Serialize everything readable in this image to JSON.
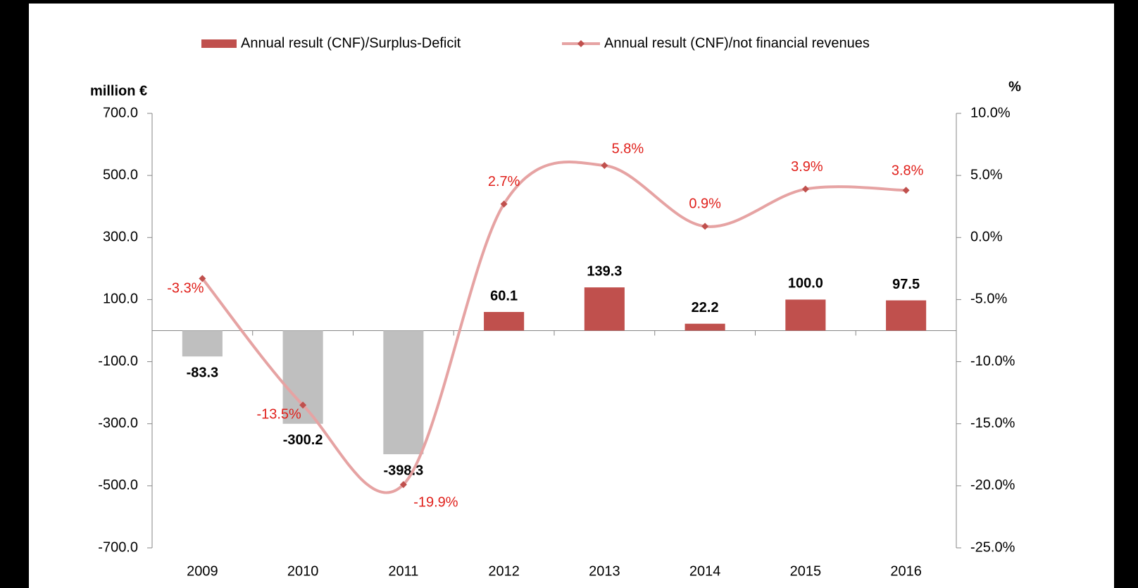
{
  "chart_data": {
    "type": "bar_line",
    "categories": [
      "2009",
      "2010",
      "2011",
      "2012",
      "2013",
      "2014",
      "2015",
      "2016"
    ],
    "series": [
      {
        "name": "Annual result (CNF)/Surplus-Deficit",
        "type": "bar",
        "color": "#c0504d",
        "negative_color": "#bfbfbf",
        "values": [
          -83.3,
          -300.2,
          -398.3,
          60.1,
          139.3,
          22.2,
          100.0,
          97.5
        ],
        "value_labels": [
          "-83.3",
          "-300.2",
          "-398.3",
          "60.1",
          "139.3",
          "22.2",
          "100.0",
          "97.5"
        ]
      },
      {
        "name": "Annual result (CNF)/not financial revenues",
        "type": "line",
        "axis": "y2",
        "color": "#e6a3a3",
        "marker_color": "#c0504d",
        "label_color": "#e0201b",
        "values": [
          -3.3,
          -13.5,
          -19.9,
          2.7,
          5.8,
          0.9,
          3.9,
          3.8
        ],
        "value_labels": [
          "-3.3%",
          "-13.5%",
          "-19.9%",
          "2.7%",
          "5.8%",
          "0.9%",
          "3.9%",
          "3.8%"
        ]
      }
    ],
    "ylabel": "million €",
    "y2label": "%",
    "ylim": [
      -700,
      700
    ],
    "yticks": [
      {
        "value": -700,
        "label": "-700.0"
      },
      {
        "value": -500,
        "label": "-500.0"
      },
      {
        "value": -300,
        "label": "-300.0"
      },
      {
        "value": -100,
        "label": "-100.0"
      },
      {
        "value": 100,
        "label": "100.0"
      },
      {
        "value": 300,
        "label": "300.0"
      },
      {
        "value": 500,
        "label": "500.0"
      },
      {
        "value": 700,
        "label": "700.0"
      }
    ],
    "y2lim": [
      -25,
      10
    ],
    "y2ticks": [
      {
        "value": -25,
        "label": "-25.0%"
      },
      {
        "value": -20,
        "label": "-20.0%"
      },
      {
        "value": -15,
        "label": "-15.0%"
      },
      {
        "value": -10,
        "label": "-10.0%"
      },
      {
        "value": -5,
        "label": "-5.0%"
      },
      {
        "value": 0,
        "label": "0.0%"
      },
      {
        "value": 5,
        "label": "5.0%"
      },
      {
        "value": 10,
        "label": "10.0%"
      }
    ],
    "grid": false,
    "legend": "top"
  }
}
